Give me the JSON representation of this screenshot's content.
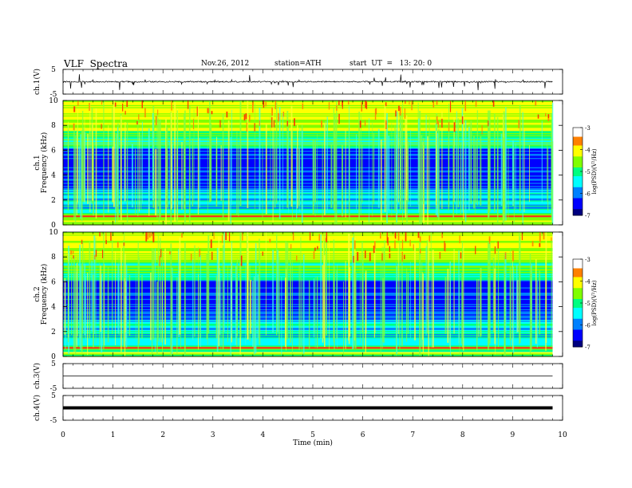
{
  "header": {
    "title": "VLF  Spectra",
    "date": "Nov.26, 2012",
    "station": "station=ATH",
    "start": "start  UT  =   13: 20: 0"
  },
  "chart_data": [
    {
      "type": "line",
      "panel": "ch1-waveform",
      "ylabel": "ch.1(V)",
      "ylim": [
        -5,
        5
      ],
      "yticks": [
        "5",
        "-5"
      ],
      "xlim": [
        0,
        10
      ],
      "x_end": 9.8,
      "baseline": 0,
      "amplitude_range": [
        -1.0,
        1.0
      ],
      "colors": {
        "line": "#000000"
      }
    },
    {
      "type": "heatmap",
      "panel": "ch1-spectrogram",
      "ylabel_top": "ch.1",
      "ylabel": "Frequency (kHz)",
      "ylim": [
        0,
        10
      ],
      "yticks": [
        "0",
        "2",
        "4",
        "6",
        "8",
        "10"
      ],
      "xlim": [
        0,
        10
      ],
      "x_end": 9.8,
      "colorbar": {
        "label": "log(PSD)(V²/Hz)",
        "range": [
          -7,
          -3
        ],
        "ticks": [
          "-3",
          "-4",
          "-5",
          "-6",
          "-7"
        ]
      }
    },
    {
      "type": "heatmap",
      "panel": "ch2-spectrogram",
      "ylabel_top": "ch.2",
      "ylabel": "Frequency (kHz)",
      "ylim": [
        0,
        10
      ],
      "yticks": [
        "0",
        "2",
        "4",
        "6",
        "8",
        "10"
      ],
      "xlim": [
        0,
        10
      ],
      "x_end": 9.8,
      "colorbar": {
        "label": "log(PSD)(V²/Hz)",
        "range": [
          -7,
          -3
        ],
        "ticks": [
          "-3",
          "-4",
          "-5",
          "-6",
          "-7"
        ]
      }
    },
    {
      "type": "line",
      "panel": "ch3-waveform",
      "ylabel": "ch.3(V)",
      "ylim": [
        -5,
        5
      ],
      "yticks": [
        "5",
        "-5"
      ],
      "xlim": [
        0,
        10
      ],
      "x_end": 9.8,
      "baseline": 0,
      "colors": {
        "line": "#000000"
      }
    },
    {
      "type": "line",
      "panel": "ch4-waveform",
      "ylabel": "ch.4(V)",
      "ylim": [
        -5,
        5
      ],
      "yticks": [
        "5",
        "-5"
      ],
      "xlim": [
        0,
        10
      ],
      "x_end": 9.8,
      "baseline": 0,
      "colors": {
        "line": "#000000"
      }
    }
  ],
  "xaxis": {
    "label": "Time  (min)",
    "ticks": [
      "0",
      "1",
      "2",
      "3",
      "4",
      "5",
      "6",
      "7",
      "8",
      "9",
      "10"
    ]
  },
  "colormap": [
    "#000080",
    "#0000ff",
    "#0080ff",
    "#00ffff",
    "#00ff80",
    "#80ff00",
    "#ffff00",
    "#ff8000",
    "#ff0000",
    "#ffffff"
  ]
}
